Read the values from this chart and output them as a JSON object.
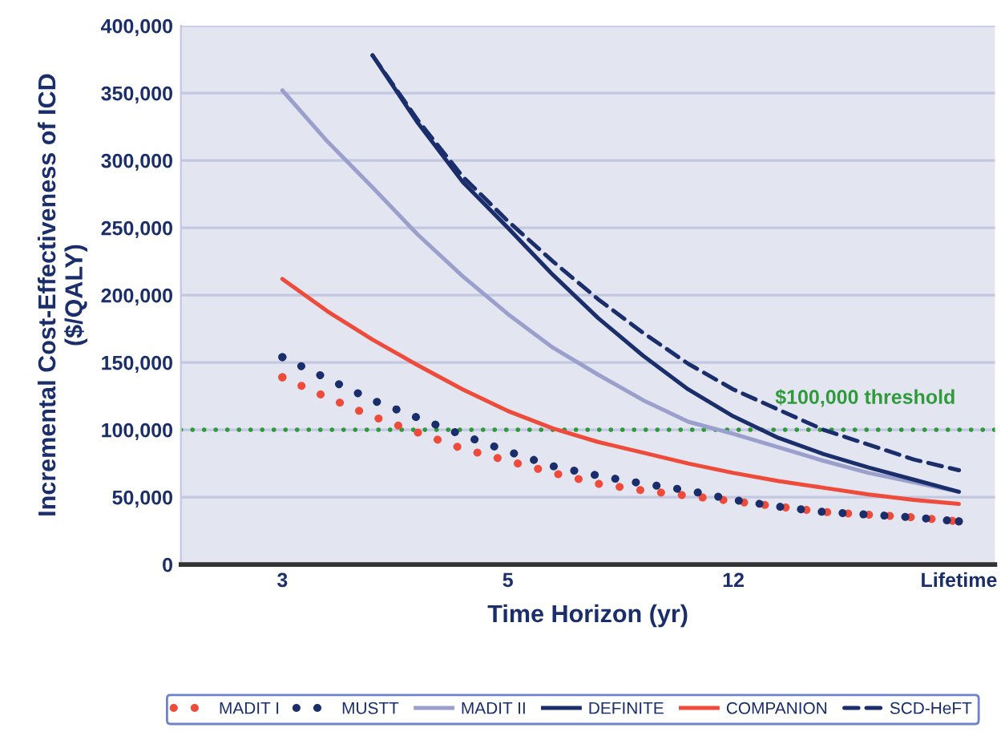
{
  "chart_data": {
    "type": "line",
    "xlabel": "Time Horizon (yr)",
    "ylabel": "Incremental Cost-Effectiveness of ICD\n($/QALY)",
    "categories": [
      null,
      null,
      "3",
      null,
      null,
      null,
      null,
      "5",
      null,
      null,
      null,
      null,
      "12",
      null,
      null,
      null,
      null,
      "Lifetime",
      null
    ],
    "ylim": [
      0,
      400000
    ],
    "yticks": [
      {
        "value": 0,
        "label": "0"
      },
      {
        "value": 50000,
        "label": "50,000"
      },
      {
        "value": 100000,
        "label": "100,000"
      },
      {
        "value": 150000,
        "label": "150,000"
      },
      {
        "value": 200000,
        "label": "200,000"
      },
      {
        "value": 250000,
        "label": "250,000"
      },
      {
        "value": 300000,
        "label": "300,000"
      },
      {
        "value": 350000,
        "label": "350,000"
      },
      {
        "value": 400000,
        "label": "400,000"
      }
    ],
    "grid": "y",
    "legend": "bottom",
    "ref_lines": [
      {
        "axis": "y",
        "value": 100000,
        "label": "$100,000 threshold",
        "color": "#2e9a3a",
        "line_style": "dotted"
      }
    ],
    "series": [
      {
        "name": "MADIT I",
        "color": "#ee4b3a",
        "line_style": "dotted",
        "values": [
          null,
          null,
          139000,
          124000,
          110000,
          98000,
          86000,
          77000,
          68000,
          60000,
          55000,
          51000,
          47000,
          43000,
          39000,
          37000,
          35000,
          32000,
          null
        ]
      },
      {
        "name": "MUSTT",
        "color": "#1a2e6b",
        "line_style": "dotted",
        "values": [
          null,
          null,
          154000,
          138000,
          122000,
          109000,
          96000,
          84000,
          73000,
          66000,
          60000,
          55000,
          48000,
          43000,
          39000,
          37000,
          35000,
          32000,
          null
        ]
      },
      {
        "name": "MADIT II",
        "color": "#9a9fcc",
        "line_style": "solid",
        "values": [
          null,
          null,
          352000,
          314000,
          280000,
          245000,
          214000,
          186000,
          161000,
          141000,
          122000,
          106000,
          97000,
          87000,
          77000,
          68000,
          61000,
          54000,
          null
        ]
      },
      {
        "name": "DEFINITE",
        "color": "#1a2e6b",
        "line_style": "solid",
        "values": [
          null,
          null,
          null,
          null,
          378000,
          328000,
          284000,
          250000,
          215000,
          183000,
          155000,
          130000,
          110000,
          94000,
          82000,
          72000,
          63000,
          54000,
          null
        ]
      },
      {
        "name": "COMPANION",
        "color": "#ee4b3a",
        "line_style": "solid",
        "values": [
          null,
          null,
          212000,
          188000,
          167000,
          148000,
          130000,
          114000,
          101000,
          91000,
          83000,
          75000,
          68000,
          62000,
          57000,
          52000,
          48000,
          45000,
          null
        ]
      },
      {
        "name": "SCD-HeFT",
        "color": "#1a2e6b",
        "line_style": "dashed",
        "values": [
          null,
          null,
          null,
          null,
          378000,
          330000,
          288000,
          255000,
          225000,
          197000,
          172000,
          149000,
          130000,
          115000,
          100000,
          89000,
          78000,
          70000,
          null
        ]
      }
    ]
  }
}
